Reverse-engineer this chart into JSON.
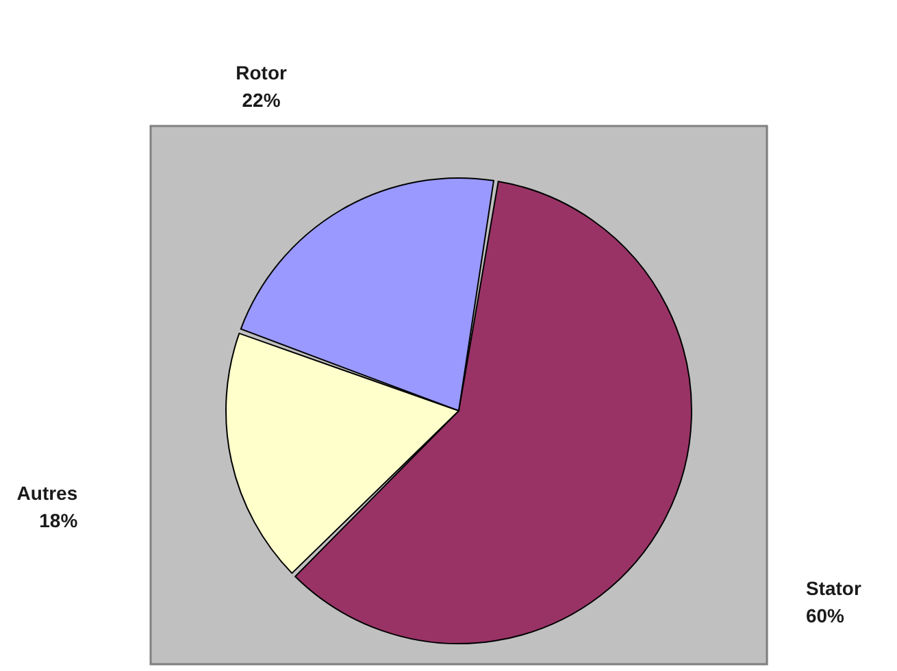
{
  "chart_data": {
    "type": "pie",
    "categories": [
      "Rotor",
      "Stator",
      "Autres"
    ],
    "values": [
      22,
      60,
      18
    ],
    "colors": [
      "#9999ff",
      "#993366",
      "#ffffcc"
    ],
    "value_labels": [
      "22%",
      "60%",
      "18%"
    ],
    "legend": false
  }
}
